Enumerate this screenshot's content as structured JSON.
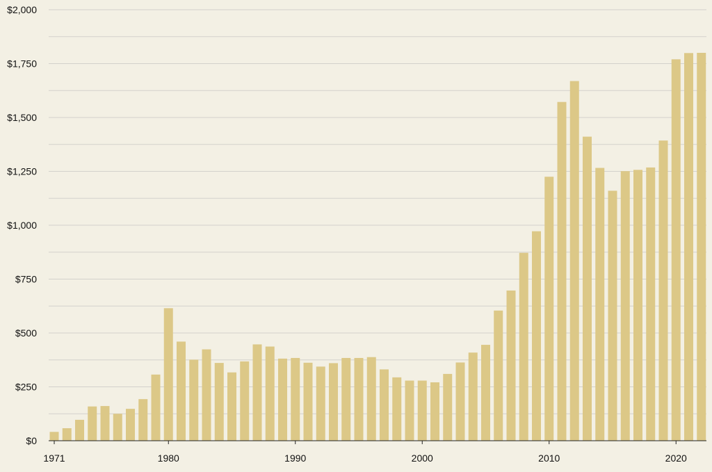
{
  "chart_data": {
    "type": "bar",
    "title": "",
    "xlabel": "",
    "ylabel": "",
    "ylim": [
      0,
      2000
    ],
    "y_ticks": [
      "$0",
      "$250",
      "$500",
      "$750",
      "$1,000",
      "$1,250",
      "$1,500",
      "$1,750",
      "$2,000"
    ],
    "y_tick_values": [
      0,
      250,
      500,
      750,
      1000,
      1250,
      1500,
      1750,
      2000
    ],
    "x_ticks": [
      "1971",
      "1980",
      "1990",
      "2000",
      "2010",
      "2020"
    ],
    "x_tick_years": [
      1971,
      1980,
      1990,
      2000,
      2010,
      2020
    ],
    "grid": true,
    "grid_minor": true,
    "colors": {
      "background": "#f3f0e4",
      "bar": "#dcc887",
      "grid": "#d3d1cb",
      "axis": "#222222",
      "text": "#111111"
    },
    "categories": [
      1971,
      1972,
      1973,
      1974,
      1975,
      1976,
      1977,
      1978,
      1979,
      1980,
      1981,
      1982,
      1983,
      1984,
      1985,
      1986,
      1987,
      1988,
      1989,
      1990,
      1991,
      1992,
      1993,
      1994,
      1995,
      1996,
      1997,
      1998,
      1999,
      2000,
      2001,
      2002,
      2003,
      2004,
      2005,
      2006,
      2007,
      2008,
      2009,
      2010,
      2011,
      2012,
      2013,
      2014,
      2015,
      2016,
      2017,
      2018,
      2019,
      2020,
      2021,
      2022
    ],
    "values": [
      41,
      58,
      97,
      159,
      161,
      125,
      148,
      193,
      307,
      615,
      460,
      376,
      424,
      361,
      317,
      368,
      447,
      437,
      381,
      384,
      362,
      344,
      360,
      384,
      384,
      388,
      331,
      294,
      279,
      279,
      271,
      310,
      363,
      409,
      445,
      604,
      697,
      872,
      972,
      1225,
      1572,
      1669,
      1411,
      1266,
      1160,
      1251,
      1257,
      1268,
      1393,
      1770,
      1799,
      1800
    ]
  }
}
